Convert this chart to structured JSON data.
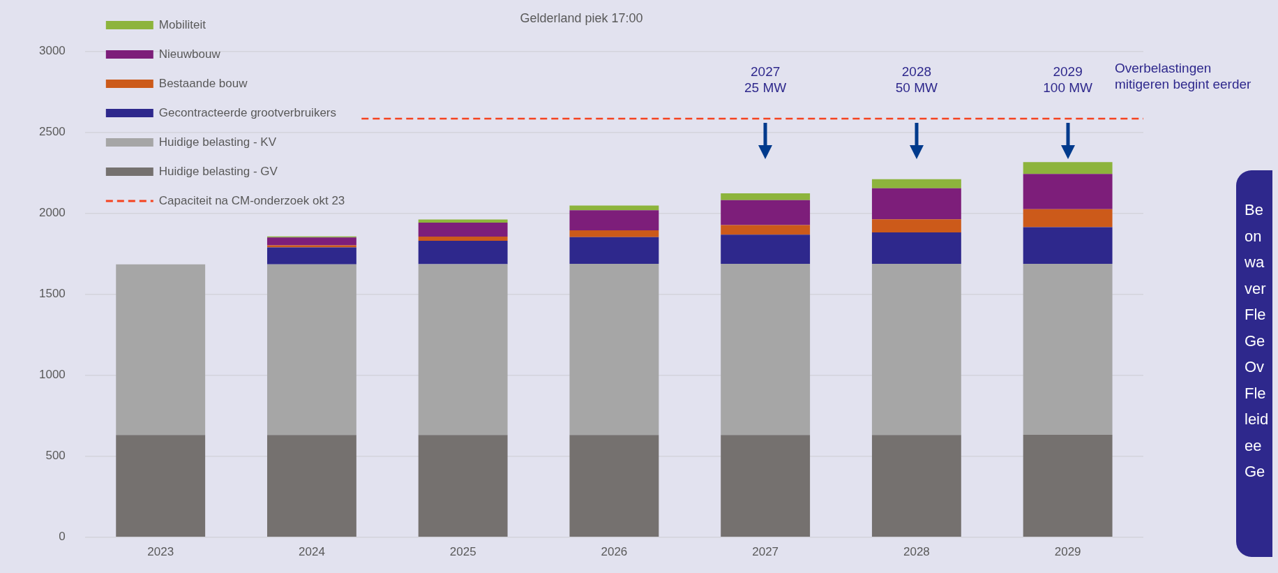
{
  "chart_data": {
    "type": "bar",
    "title": "Gelderland piek 17:00",
    "categories": [
      "2023",
      "2024",
      "2025",
      "2026",
      "2027",
      "2028",
      "2029"
    ],
    "stacked": true,
    "series": [
      {
        "name": "Huidige belasting - GV",
        "color": "#75716f",
        "values": [
          632,
          632,
          632,
          632,
          632,
          632,
          633
        ]
      },
      {
        "name": "Huidige belasting - KV",
        "color": "#a6a6a6",
        "values": [
          1053,
          1053,
          1054,
          1056,
          1056,
          1056,
          1055
        ]
      },
      {
        "name": "Gecontracteerde grootverbruikers",
        "color": "#2e288c",
        "values": [
          null,
          105,
          145,
          165,
          180,
          194,
          226
        ]
      },
      {
        "name": "Bestaande bouw",
        "color": "#cc5a1a",
        "values": [
          null,
          13,
          25,
          42,
          59,
          81,
          112
        ]
      },
      {
        "name": "Nieuwbouw",
        "color": "#7d1e7a",
        "values": [
          null,
          48,
          87,
          124,
          155,
          192,
          217
        ]
      },
      {
        "name": "Mobiliteit",
        "color": "#8db43c",
        "values": [
          null,
          6,
          19,
          29,
          42,
          56,
          73
        ]
      }
    ],
    "ylim": [
      0,
      3000
    ],
    "yticks": [
      0,
      500,
      1000,
      1500,
      2000,
      2500,
      3000
    ],
    "grid": "y",
    "legend": "top left",
    "ref_lines": [
      {
        "axis": "y",
        "value": 2585,
        "label": "Capaciteit na CM-onderzoek okt 23",
        "color": "#f5421f",
        "line_style": "dashed"
      }
    ],
    "annotations": [
      "2027\n25 MW",
      "2028\n50 MW",
      "2029\n100 MW",
      "Overbelastingen\nmitigeren begint eerder",
      "Be\non\nwa\nver\nFle\nGe\nOv\nFle\nleid\nee\nGe"
    ]
  }
}
